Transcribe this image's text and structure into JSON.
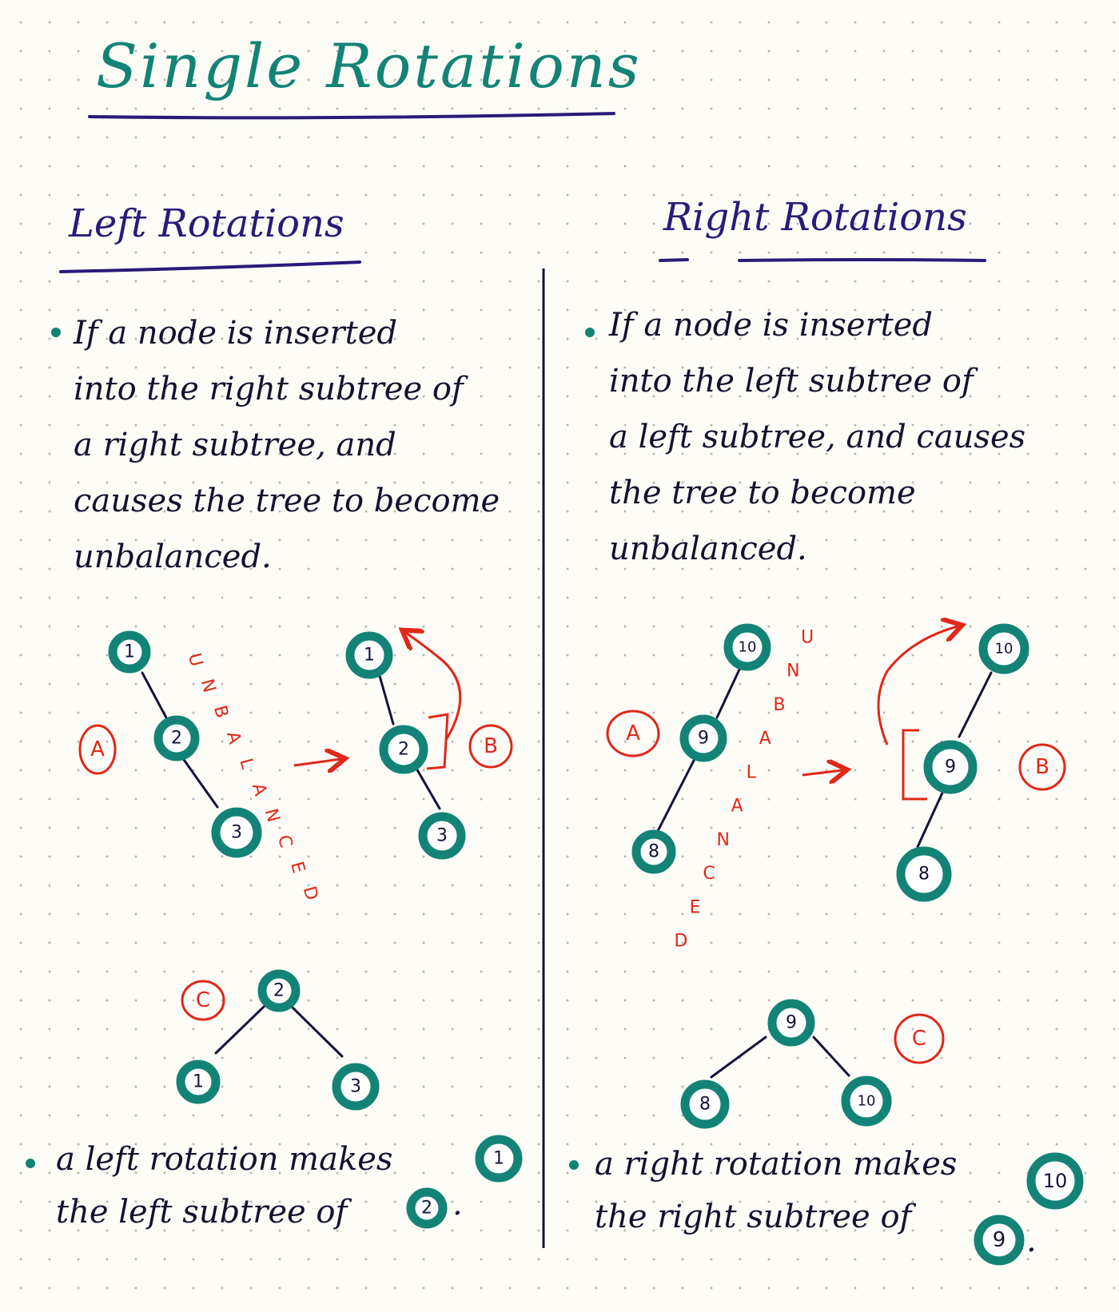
{
  "title": "Single Rotations",
  "colors": {
    "teal": "#138376",
    "purple": "#2a1a7a",
    "red": "#e02818",
    "ink": "#15112e"
  },
  "left": {
    "heading": "Left Rotations",
    "description": [
      "If a node is inserted",
      "into the right subtree of",
      "a right subtree, and",
      "causes the tree to become",
      "unbalanced."
    ],
    "label_a": "A",
    "label_b": "B",
    "label_c": "C",
    "unbalanced_word": "UNBALANCED",
    "arrow": "→",
    "tree_a": [
      "1",
      "2",
      "3"
    ],
    "tree_b": [
      "1",
      "2",
      "3"
    ],
    "tree_c": [
      "2",
      "1",
      "3"
    ],
    "note": [
      "a left rotation makes",
      "the left subtree of"
    ],
    "note_node_1": "1",
    "note_node_2": "2",
    "note_end": "."
  },
  "right": {
    "heading": "Right Rotations",
    "description": [
      "If a node is inserted",
      "into the left subtree of",
      "a left subtree, and causes",
      "the tree to become",
      "unbalanced."
    ],
    "label_a": "A",
    "label_b": "B",
    "label_c": "C",
    "unbalanced_word": "UNBALANCED",
    "arrow": "→",
    "tree_a": [
      "10",
      "9",
      "8"
    ],
    "tree_b": [
      "10",
      "9",
      "8"
    ],
    "tree_c": [
      "9",
      "8",
      "10"
    ],
    "note": [
      "a right rotation makes",
      "the right subtree of"
    ],
    "note_node_1": "10",
    "note_node_2": "9",
    "note_end": "."
  }
}
